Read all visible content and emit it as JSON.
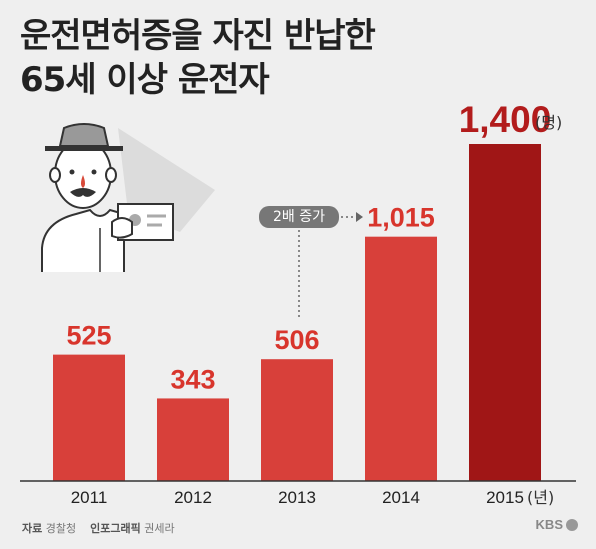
{
  "title_lines": [
    "운전면허증을 자진 반납한",
    "65세 이상 운전자"
  ],
  "chart_data": {
    "type": "bar",
    "categories": [
      "2011",
      "2012",
      "2013",
      "2014",
      "2015"
    ],
    "values": [
      525,
      343,
      506,
      1015,
      1400
    ],
    "value_labels": [
      "525",
      "343",
      "506",
      "1,015",
      "1,400"
    ],
    "value_unit": "(명)",
    "category_unit": "(년)",
    "annotation": "2배 증가",
    "ylim": [
      0,
      1400
    ],
    "colors": {
      "bar": "#d8403a",
      "highlight": "#a01616"
    }
  },
  "footer": {
    "source_label": "자료",
    "source": "경찰청",
    "credit_label": "인포그래픽",
    "credit": "권세라"
  },
  "logo": "KBS"
}
